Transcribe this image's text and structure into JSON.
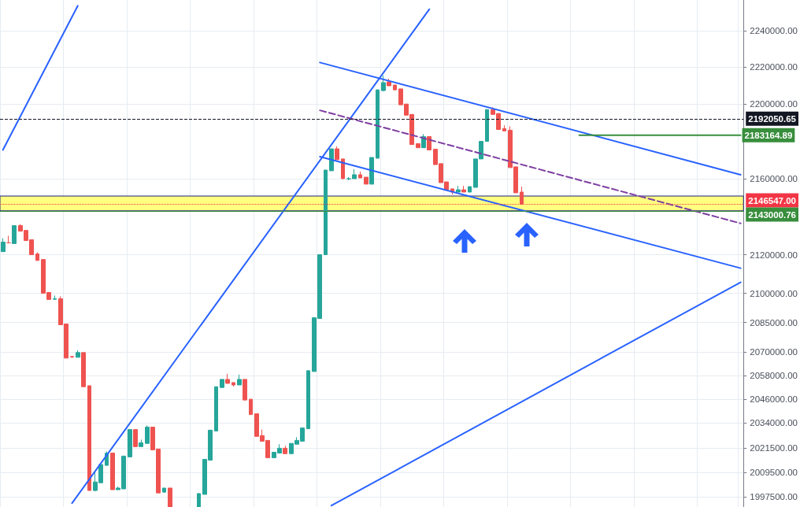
{
  "chart_data": {
    "type": "candlestick",
    "log": true,
    "grid": true,
    "tick_labels": "y",
    "marker": "none",
    "line_style": "solid",
    "categories": [
      null,
      null,
      null,
      null,
      null,
      null,
      null,
      null,
      null,
      null,
      null,
      null,
      null,
      null,
      null,
      null,
      null,
      null,
      null,
      null,
      null,
      null,
      null,
      null,
      null,
      null,
      null,
      null,
      null,
      null,
      null,
      null,
      null,
      null,
      null,
      null,
      null,
      null,
      null,
      null,
      null,
      null,
      null,
      null,
      null,
      null,
      null,
      null,
      null,
      null,
      null,
      null,
      null,
      null,
      null,
      null,
      null,
      null,
      null,
      null,
      null,
      null,
      null,
      null,
      null,
      null,
      null,
      null,
      null,
      null,
      null,
      null,
      null,
      null,
      null,
      null,
      null,
      null,
      null,
      null,
      null,
      null,
      null,
      null,
      null,
      null,
      null,
      null,
      null,
      null,
      null,
      null,
      null,
      null,
      null,
      null,
      null,
      null,
      null,
      null,
      null,
      null,
      null,
      null,
      null,
      null,
      null,
      null,
      null,
      null,
      null,
      null,
      null,
      null,
      null,
      null,
      null,
      null,
      null,
      null,
      null,
      null,
      null,
      null,
      null,
      null,
      null,
      null,
      null
    ],
    "ohlc": [
      [
        2121600,
        2128600,
        2121600,
        2126600
      ],
      [
        2126200,
        2129900,
        2126200,
        2126200
      ],
      [
        2125800,
        2135200,
        2125800,
        2135200
      ],
      [
        2135200,
        2136000,
        2132300,
        2132300
      ],
      [
        2132700,
        2132700,
        2127400,
        2127400
      ],
      [
        2127800,
        2127800,
        2120000,
        2120000
      ],
      [
        2120400,
        2121200,
        2117000,
        2117000
      ],
      [
        2117500,
        2117500,
        2100000,
        2100000
      ],
      [
        2100400,
        2100400,
        2096800,
        2096800
      ],
      [
        2096900,
        2098800,
        2096900,
        2097200
      ],
      [
        2097200,
        2098400,
        2083800,
        2083800
      ],
      [
        2084200,
        2084200,
        2066800,
        2066800
      ],
      [
        2067600,
        2067600,
        2066800,
        2067400
      ],
      [
        2067200,
        2070800,
        2067200,
        2069600
      ],
      [
        2069600,
        2069600,
        2052300,
        2052300
      ],
      [
        2052800,
        2052800,
        2000600,
        2000600
      ],
      [
        2000600,
        2009500,
        2000200,
        2004800
      ],
      [
        2004400,
        2013400,
        2004400,
        2013400
      ],
      [
        2013000,
        2019900,
        2013000,
        2019100
      ],
      [
        2019100,
        2019100,
        2001000,
        2001000
      ],
      [
        2001000,
        2002500,
        2001000,
        2001800
      ],
      [
        2001400,
        2017600,
        2001400,
        2017600
      ],
      [
        2017200,
        2030800,
        2017200,
        2030800
      ],
      [
        2030800,
        2030800,
        2022300,
        2022300
      ],
      [
        2022300,
        2025800,
        2022300,
        2024200
      ],
      [
        2023900,
        2032800,
        2023900,
        2032000
      ],
      [
        2032000,
        2032000,
        2020700,
        2020700
      ],
      [
        2021100,
        2021100,
        1999400,
        1999400
      ],
      [
        1999800,
        2001800,
        1999400,
        2001800
      ],
      [
        2001800,
        2001800,
        1992500,
        1992500
      ],
      null,
      null,
      null,
      null,
      [
        1992500,
        1999100,
        1992500,
        1999100
      ],
      [
        1998700,
        2016000,
        1998700,
        2016000
      ],
      [
        2015600,
        2030500,
        2015600,
        2030500
      ],
      [
        2030100,
        2052300,
        2030100,
        2052300
      ],
      [
        2051900,
        2056000,
        2051900,
        2056000
      ],
      [
        2056000,
        2058800,
        2054000,
        2054000
      ],
      [
        2054400,
        2054400,
        2052400,
        2053200
      ],
      [
        2053200,
        2058400,
        2053200,
        2056000
      ],
      [
        2056000,
        2056000,
        2045600,
        2045600
      ],
      [
        2046000,
        2046000,
        2038300,
        2038300
      ],
      [
        2038700,
        2038700,
        2027400,
        2027400
      ],
      [
        2027800,
        2030800,
        2025000,
        2025000
      ],
      [
        2025400,
        2025400,
        2016800,
        2016800
      ],
      [
        2016800,
        2019500,
        2016800,
        2019500
      ],
      [
        2019100,
        2023500,
        2019100,
        2021500
      ],
      [
        2021500,
        2022700,
        2018800,
        2018800
      ],
      [
        2018800,
        2023900,
        2018800,
        2023900
      ],
      [
        2023500,
        2027000,
        2023500,
        2025400
      ],
      [
        2025000,
        2031600,
        2025000,
        2031600
      ],
      [
        2031200,
        2060400,
        2031200,
        2060400
      ],
      [
        2060000,
        2087400,
        2060000,
        2087400
      ],
      [
        2087000,
        2120000,
        2087000,
        2120000
      ],
      [
        2120000,
        2164600,
        2120000,
        2164600
      ],
      [
        2164200,
        2175900,
        2164200,
        2175900
      ],
      [
        2175900,
        2177200,
        2170100,
        2170100
      ],
      [
        2170500,
        2170500,
        2160000,
        2160000
      ],
      [
        2159900,
        2160800,
        2159200,
        2160000
      ],
      [
        2160000,
        2165000,
        2160000,
        2162100
      ],
      [
        2162100,
        2163800,
        2160400,
        2160400
      ],
      [
        2160800,
        2160800,
        2157100,
        2157100
      ],
      [
        2157100,
        2171300,
        2157100,
        2171300
      ],
      [
        2170900,
        2207700,
        2170900,
        2207700
      ],
      [
        2207300,
        2215500,
        2206900,
        2211600
      ],
      [
        2212000,
        2213800,
        2209900,
        2209900
      ],
      [
        2210300,
        2210300,
        2207700,
        2207700
      ],
      [
        2208200,
        2208200,
        2199600,
        2199600
      ],
      [
        2200000,
        2200000,
        2194000,
        2194000
      ],
      [
        2194400,
        2194400,
        2178200,
        2178200
      ],
      [
        2178700,
        2178700,
        2176500,
        2176500
      ],
      [
        2176500,
        2183800,
        2176500,
        2182500
      ],
      [
        2182500,
        2182500,
        2175300,
        2175300
      ],
      [
        2175700,
        2175700,
        2167500,
        2167500
      ],
      [
        2168000,
        2168000,
        2157900,
        2157900
      ],
      [
        2158300,
        2158300,
        2154100,
        2154100
      ],
      [
        2154600,
        2154600,
        2151600,
        2152900
      ],
      [
        2152900,
        2156200,
        2152900,
        2154100
      ],
      [
        2154100,
        2156200,
        2152900,
        2152900
      ],
      [
        2152900,
        2155800,
        2152900,
        2155800
      ],
      [
        2155400,
        2170500,
        2155400,
        2170500
      ],
      [
        2170500,
        2179900,
        2170500,
        2179900
      ],
      [
        2179900,
        2197000,
        2179900,
        2197000
      ],
      [
        2197000,
        2198300,
        2194400,
        2194400
      ],
      [
        2194900,
        2194900,
        2186300,
        2186300
      ],
      [
        2186800,
        2188500,
        2185500,
        2185500
      ],
      [
        2185900,
        2188000,
        2165900,
        2165900
      ],
      [
        2166300,
        2166300,
        2152500,
        2152500
      ],
      [
        2152900,
        2155800,
        2146547,
        2146547
      ],
      null,
      null,
      null,
      null,
      null,
      null,
      null,
      null,
      null,
      null,
      null,
      null,
      null,
      null,
      null,
      null,
      null,
      null,
      null,
      null,
      null,
      null,
      null,
      null,
      null,
      null,
      null,
      null,
      null,
      null,
      null,
      null,
      null,
      null,
      null,
      null,
      null,
      null
    ],
    "colors": [
      "#26a69a",
      "#ef5350",
      "#26a69a",
      "#ef5350",
      "#ef5350",
      "#ef5350",
      "#ef5350",
      "#ef5350",
      "#ef5350",
      "#26a69a",
      "#ef5350",
      "#ef5350",
      "#ef5350",
      "#26a69a",
      "#ef5350",
      "#ef5350",
      "#26a69a",
      "#26a69a",
      "#26a69a",
      "#ef5350",
      "#26a69a",
      "#26a69a",
      "#26a69a",
      "#ef5350",
      "#26a69a",
      "#26a69a",
      "#ef5350",
      "#ef5350",
      "#26a69a",
      "#ef5350",
      null,
      null,
      null,
      null,
      "#26a69a",
      "#26a69a",
      "#26a69a",
      "#26a69a",
      "#26a69a",
      "#ef5350",
      "#ef5350",
      "#26a69a",
      "#ef5350",
      "#ef5350",
      "#ef5350",
      "#ef5350",
      "#ef5350",
      "#26a69a",
      "#26a69a",
      "#ef5350",
      "#26a69a",
      "#26a69a",
      "#26a69a",
      "#26a69a",
      "#26a69a",
      "#26a69a",
      "#26a69a",
      "#26a69a",
      "#ef5350",
      "#ef5350",
      "#26a69a",
      "#26a69a",
      "#ef5350",
      "#ef5350",
      "#26a69a",
      "#26a69a",
      "#26a69a",
      "#ef5350",
      "#ef5350",
      "#ef5350",
      "#ef5350",
      "#ef5350",
      "#ef5350",
      "#26a69a",
      "#ef5350",
      "#ef5350",
      "#ef5350",
      "#ef5350",
      "#ef5350",
      "#26a69a",
      "#ef5350",
      "#26a69a",
      "#26a69a",
      "#26a69a",
      "#26a69a",
      "#ef5350",
      "#ef5350",
      "#ef5350",
      "#ef5350",
      "#ef5350",
      "#ef5350",
      null,
      null,
      null,
      null,
      null,
      null,
      null,
      null,
      null,
      null,
      null,
      null,
      null,
      null,
      null,
      null,
      null,
      null,
      null,
      null,
      null,
      null,
      null,
      null,
      null,
      null,
      null,
      null,
      null,
      null,
      null,
      null,
      null,
      null,
      null,
      null,
      null,
      null
    ],
    "series": [
      {
        "type": "line",
        "color": "#2962ff",
        "values": [
          2175300,
          null,
          null,
          null,
          null,
          null,
          null,
          null,
          null,
          null,
          null,
          null,
          null,
          2253800,
          null,
          null,
          null,
          null,
          null,
          null,
          null,
          null,
          null,
          null,
          null,
          null,
          null,
          null,
          null,
          null,
          null,
          null,
          null,
          null,
          null,
          null,
          null,
          null,
          null,
          null,
          null,
          null,
          null,
          null,
          null,
          null,
          null,
          null,
          null,
          null,
          null,
          null,
          null,
          null,
          null,
          null,
          null,
          null,
          null,
          null,
          null,
          null,
          null,
          null,
          null,
          null,
          null,
          null,
          null,
          null,
          null,
          null,
          null,
          null,
          null,
          null,
          null,
          null,
          null,
          null,
          null,
          null,
          null,
          null,
          null,
          null,
          null,
          null,
          null,
          null,
          null,
          null,
          null,
          null,
          null,
          null,
          null,
          null,
          null,
          null,
          null,
          null,
          null,
          null,
          null,
          null,
          null,
          null,
          null,
          null,
          null,
          null,
          null,
          null,
          null,
          null,
          null,
          null,
          null,
          null,
          null,
          null,
          null,
          null,
          null,
          null,
          null,
          null,
          null
        ]
      },
      {
        "type": "line",
        "color": "#2962ff",
        "values": [
          null,
          null,
          null,
          null,
          null,
          null,
          null,
          null,
          null,
          null,
          null,
          null,
          1994400,
          null,
          null,
          null,
          null,
          null,
          null,
          null,
          null,
          null,
          null,
          null,
          null,
          null,
          null,
          null,
          null,
          null,
          null,
          null,
          null,
          null,
          null,
          null,
          null,
          null,
          null,
          null,
          null,
          null,
          null,
          null,
          null,
          null,
          null,
          null,
          null,
          null,
          null,
          null,
          null,
          null,
          null,
          null,
          null,
          null,
          null,
          null,
          null,
          null,
          null,
          null,
          null,
          null,
          null,
          null,
          null,
          null,
          null,
          null,
          null,
          null,
          2251900,
          null,
          null,
          null,
          null,
          null,
          null,
          null,
          null,
          null,
          null,
          null,
          null,
          null,
          null,
          null,
          null,
          null,
          null,
          null,
          null,
          null,
          null,
          null,
          null,
          null,
          null,
          null,
          null,
          null,
          null,
          null,
          null,
          null,
          null,
          null,
          null,
          null,
          null,
          null,
          null,
          null,
          null,
          null,
          null,
          null,
          null,
          null,
          null,
          null,
          null,
          null,
          null,
          null,
          null
        ]
      },
      {
        "type": "line",
        "color": "#2962ff",
        "values": [
          null,
          null,
          null,
          null,
          null,
          null,
          null,
          null,
          null,
          null,
          null,
          null,
          null,
          null,
          null,
          null,
          null,
          null,
          null,
          null,
          null,
          null,
          null,
          null,
          null,
          null,
          null,
          null,
          null,
          null,
          null,
          null,
          null,
          null,
          null,
          null,
          null,
          null,
          null,
          null,
          null,
          null,
          null,
          null,
          null,
          null,
          null,
          null,
          null,
          null,
          null,
          null,
          null,
          null,
          null,
          null,
          null,
          1993200,
          null,
          null,
          null,
          null,
          null,
          null,
          null,
          null,
          null,
          null,
          null,
          null,
          null,
          null,
          null,
          null,
          null,
          null,
          null,
          null,
          null,
          null,
          null,
          null,
          null,
          null,
          null,
          null,
          null,
          null,
          null,
          null,
          null,
          null,
          null,
          null,
          null,
          null,
          null,
          null,
          null,
          null,
          null,
          null,
          null,
          null,
          null,
          null,
          null,
          null,
          null,
          null,
          null,
          null,
          null,
          null,
          null,
          null,
          null,
          null,
          null,
          null,
          null,
          null,
          null,
          null,
          null,
          null,
          null,
          null,
          2105700
        ]
      },
      {
        "type": "line",
        "color": "#2962ff",
        "values": [
          null,
          null,
          null,
          null,
          null,
          null,
          null,
          null,
          null,
          null,
          null,
          null,
          null,
          null,
          null,
          null,
          null,
          null,
          null,
          null,
          null,
          null,
          null,
          null,
          null,
          null,
          null,
          null,
          null,
          null,
          null,
          null,
          null,
          null,
          null,
          null,
          null,
          null,
          null,
          null,
          null,
          null,
          null,
          null,
          null,
          null,
          null,
          null,
          null,
          null,
          null,
          null,
          null,
          null,
          null,
          2222600,
          null,
          null,
          null,
          null,
          null,
          null,
          null,
          null,
          null,
          null,
          null,
          null,
          null,
          null,
          null,
          null,
          null,
          null,
          null,
          null,
          null,
          null,
          null,
          null,
          null,
          null,
          null,
          null,
          null,
          null,
          null,
          null,
          null,
          null,
          null,
          null,
          null,
          null,
          null,
          null,
          null,
          null,
          null,
          null,
          null,
          null,
          null,
          null,
          null,
          null,
          null,
          null,
          null,
          null,
          null,
          null,
          null,
          null,
          null,
          null,
          null,
          null,
          null,
          null,
          null,
          null,
          null,
          null,
          null,
          null,
          null,
          null,
          2162100
        ]
      },
      {
        "type": "line",
        "color": "#2962ff",
        "values": [
          null,
          null,
          null,
          null,
          null,
          null,
          null,
          null,
          null,
          null,
          null,
          null,
          null,
          null,
          null,
          null,
          null,
          null,
          null,
          null,
          null,
          null,
          null,
          null,
          null,
          null,
          null,
          null,
          null,
          null,
          null,
          null,
          null,
          null,
          null,
          null,
          null,
          null,
          null,
          null,
          null,
          null,
          null,
          null,
          null,
          null,
          null,
          null,
          null,
          null,
          null,
          null,
          null,
          null,
          null,
          2171700,
          null,
          null,
          null,
          null,
          null,
          null,
          null,
          null,
          null,
          null,
          null,
          null,
          null,
          null,
          null,
          null,
          null,
          null,
          null,
          null,
          null,
          null,
          null,
          null,
          null,
          null,
          null,
          null,
          null,
          null,
          null,
          null,
          null,
          null,
          null,
          null,
          null,
          null,
          null,
          null,
          null,
          null,
          null,
          null,
          null,
          null,
          null,
          null,
          null,
          null,
          null,
          null,
          null,
          null,
          null,
          null,
          null,
          null,
          null,
          null,
          null,
          null,
          null,
          null,
          null,
          null,
          null,
          null,
          null,
          null,
          null,
          null,
          2113000
        ]
      },
      {
        "type": "line",
        "color": "#7e3fa2",
        "line_style": "dashed",
        "values": [
          null,
          null,
          null,
          null,
          null,
          null,
          null,
          null,
          null,
          null,
          null,
          null,
          null,
          null,
          null,
          null,
          null,
          null,
          null,
          null,
          null,
          null,
          null,
          null,
          null,
          null,
          null,
          null,
          null,
          null,
          null,
          null,
          null,
          null,
          null,
          null,
          null,
          null,
          null,
          null,
          null,
          null,
          null,
          null,
          null,
          null,
          null,
          null,
          null,
          null,
          null,
          null,
          null,
          null,
          null,
          2196600,
          null,
          null,
          null,
          null,
          null,
          null,
          null,
          null,
          null,
          null,
          null,
          null,
          null,
          null,
          null,
          null,
          null,
          null,
          null,
          null,
          null,
          null,
          null,
          null,
          null,
          null,
          null,
          null,
          null,
          null,
          null,
          null,
          null,
          null,
          null,
          null,
          null,
          null,
          null,
          null,
          null,
          null,
          null,
          null,
          null,
          null,
          null,
          null,
          null,
          null,
          null,
          null,
          null,
          null,
          null,
          null,
          null,
          null,
          null,
          null,
          null,
          null,
          null,
          null,
          null,
          null,
          null,
          null,
          null,
          null,
          null,
          null,
          2136400
        ]
      },
      {
        "type": "line",
        "color": "#388e3c",
        "values": [
          null,
          null,
          null,
          null,
          null,
          null,
          null,
          null,
          null,
          null,
          null,
          null,
          null,
          null,
          null,
          null,
          null,
          null,
          null,
          null,
          null,
          null,
          null,
          null,
          null,
          null,
          null,
          null,
          null,
          null,
          null,
          null,
          null,
          null,
          null,
          null,
          null,
          null,
          null,
          null,
          null,
          null,
          null,
          null,
          null,
          null,
          null,
          null,
          null,
          null,
          null,
          null,
          null,
          null,
          null,
          null,
          null,
          null,
          null,
          null,
          null,
          null,
          null,
          null,
          null,
          null,
          null,
          null,
          null,
          null,
          null,
          null,
          null,
          null,
          null,
          null,
          null,
          null,
          null,
          null,
          null,
          null,
          null,
          null,
          null,
          null,
          null,
          null,
          null,
          null,
          null,
          null,
          null,
          null,
          null,
          null,
          null,
          null,
          null,
          null,
          2183164.89,
          null,
          null,
          null,
          null,
          null,
          null,
          null,
          null,
          null,
          null,
          null,
          null,
          null,
          null,
          null,
          null,
          null,
          null,
          null,
          null,
          null,
          null,
          null,
          null,
          null,
          null,
          null,
          2183164.89
        ],
        "value_labels": [
          null,
          null,
          null,
          null,
          null,
          null,
          null,
          null,
          null,
          null,
          null,
          null,
          null,
          null,
          null,
          null,
          null,
          null,
          null,
          null,
          null,
          null,
          null,
          null,
          null,
          null,
          null,
          null,
          null,
          null,
          null,
          null,
          null,
          null,
          null,
          null,
          null,
          null,
          null,
          null,
          null,
          null,
          null,
          null,
          null,
          null,
          null,
          null,
          null,
          null,
          null,
          null,
          null,
          null,
          null,
          null,
          null,
          null,
          null,
          null,
          null,
          null,
          null,
          null,
          null,
          null,
          null,
          null,
          null,
          null,
          null,
          null,
          null,
          null,
          null,
          null,
          null,
          null,
          null,
          null,
          null,
          null,
          null,
          null,
          null,
          null,
          null,
          null,
          null,
          null,
          null,
          null,
          null,
          null,
          null,
          null,
          null,
          null,
          null,
          null,
          null,
          null,
          null,
          null,
          null,
          null,
          null,
          null,
          null,
          null,
          null,
          null,
          null,
          null,
          null,
          null,
          null,
          null,
          null,
          null,
          null,
          null,
          null,
          null,
          null,
          null,
          null,
          null,
          "2183164.89"
        ]
      }
    ],
    "ref_lines": [
      {
        "axis": "y",
        "value": 2192050.65,
        "label": "2192050.65",
        "color": "#131722",
        "line_style": "dashed"
      },
      {
        "axis": "y",
        "value": 2146547,
        "label": "2146547.00",
        "color": "#f23645",
        "line_style": "dotted"
      },
      {
        "axis": "y",
        "value": 2143000.76,
        "label": "2143000.76",
        "color": "#388e3c",
        "line_style": "solid"
      }
    ],
    "bands": [
      {
        "axis": "y",
        "from": 2143000.76,
        "to": 2150800,
        "color": "#ffff80"
      }
    ],
    "ylim": [
      1992500,
      2257000
    ],
    "yticks": [
      {
        "value": 2240000,
        "label": "2240000.00"
      },
      {
        "value": 2220000,
        "label": "2220000.00"
      },
      {
        "value": 2200000,
        "label": "2200000.00"
      },
      {
        "value": 2160000,
        "label": "2160000.00"
      },
      {
        "value": 2120000,
        "label": "2120000.00"
      },
      {
        "value": 2100000,
        "label": "2100000.00"
      },
      {
        "value": 2085000,
        "label": "2085000.00"
      },
      {
        "value": 2070000,
        "label": "2070000.00"
      },
      {
        "value": 2058000,
        "label": "2058000.00"
      },
      {
        "value": 2046000,
        "label": "2046000.00"
      },
      {
        "value": 2034000,
        "label": "2034000.00"
      },
      {
        "value": 2021500,
        "label": "2021500.00"
      },
      {
        "value": 2009500,
        "label": "2009500.00"
      },
      {
        "value": 1997500,
        "label": "1997500.00"
      }
    ]
  }
}
